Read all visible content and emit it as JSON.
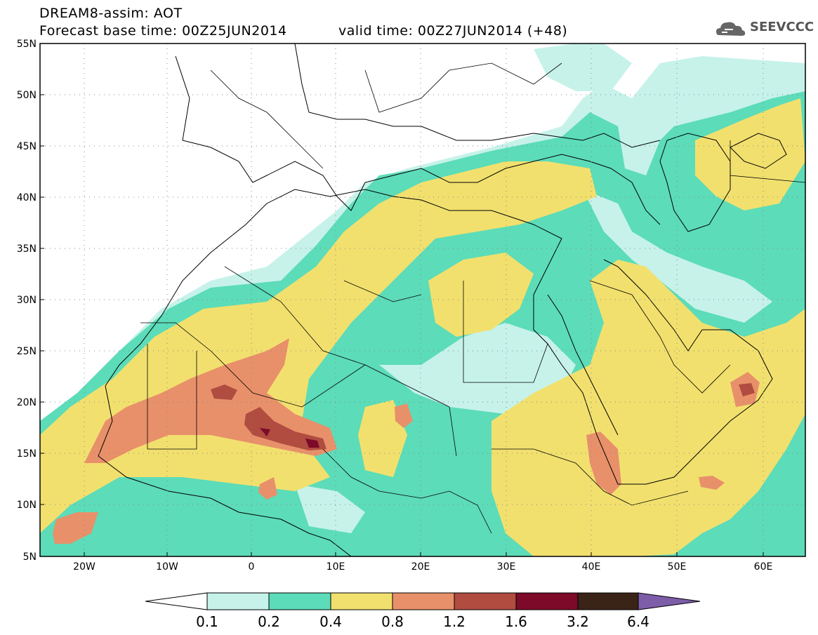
{
  "header": {
    "title_line1": "DREAM8-assim: AOT",
    "forecast_base": "Forecast base time: 00Z25JUN2014",
    "valid_time": "valid time: 00Z27JUN2014 (+48)"
  },
  "logo": {
    "text": "SEEVCCC",
    "icon": "cloud-logo-icon"
  },
  "map": {
    "lat_labels": [
      "55N",
      "50N",
      "45N",
      "40N",
      "35N",
      "30N",
      "25N",
      "20N",
      "15N",
      "10N",
      "5N"
    ],
    "lon_labels": [
      "20W",
      "10W",
      "0",
      "10E",
      "20E",
      "30E",
      "40E",
      "50E",
      "60E"
    ]
  },
  "colorbar": {
    "colors": [
      "#ffffff",
      "#c6f2ea",
      "#5cdcb8",
      "#f2e06e",
      "#e8906a",
      "#b04c40",
      "#7c0a28",
      "#3a2418",
      "#7d5ca8"
    ],
    "labels": [
      "0.1",
      "0.2",
      "0.4",
      "0.8",
      "1.2",
      "1.6",
      "3.2",
      "6.4"
    ]
  }
}
